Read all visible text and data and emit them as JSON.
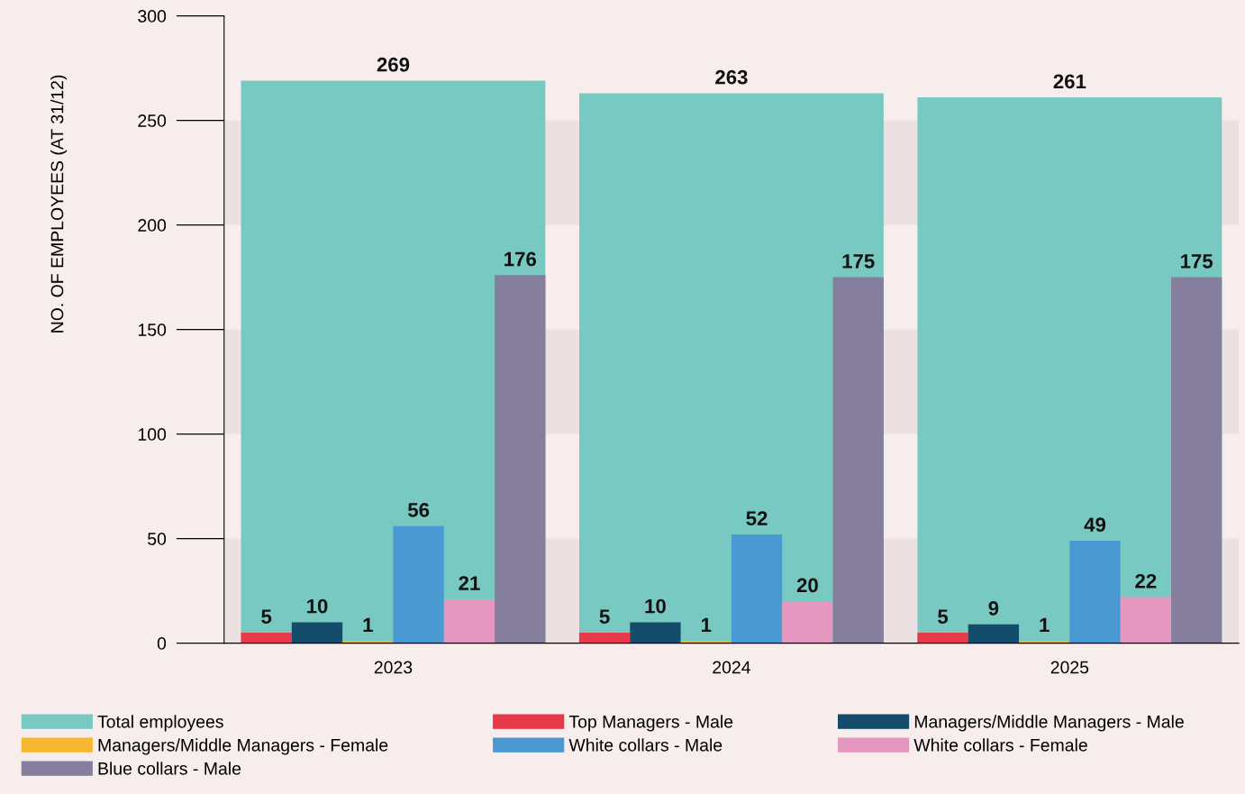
{
  "chart_data": {
    "type": "bar",
    "categories": [
      "2023",
      "2024",
      "2025"
    ],
    "ylabel": "NO. OF EMPLOYEES (AT 31/12)",
    "ylim": [
      0,
      300
    ],
    "yticks": [
      0,
      50,
      100,
      150,
      200,
      250,
      300
    ],
    "data_labels": true,
    "legend": "bottom",
    "grid": false,
    "bands": [
      {
        "axis": "y",
        "from": 0,
        "to": 50,
        "color": "#ede0e2"
      },
      {
        "axis": "y",
        "from": 100,
        "to": 150,
        "color": "#ede0e2"
      },
      {
        "axis": "y",
        "from": 200,
        "to": 250,
        "color": "#ede0e2"
      }
    ],
    "series": [
      {
        "name": "Total employees",
        "color": "#78c9c1",
        "values": [
          269,
          263,
          261
        ]
      },
      {
        "name": "Top Managers - Male",
        "color": "#e8394b",
        "values": [
          5,
          5,
          5
        ]
      },
      {
        "name": "Managers/Middle Managers - Male",
        "color": "#144c6b",
        "values": [
          10,
          10,
          9
        ]
      },
      {
        "name": "Managers/Middle Managers - Female",
        "color": "#f5b82e",
        "values": [
          1,
          1,
          1
        ]
      },
      {
        "name": "White collars - Male",
        "color": "#4a99d3",
        "values": [
          56,
          52,
          49
        ]
      },
      {
        "name": "White collars - Female",
        "color": "#e597c0",
        "values": [
          21,
          20,
          22
        ]
      },
      {
        "name": "Blue collars - Male",
        "color": "#857e9c",
        "values": [
          176,
          175,
          175
        ]
      }
    ]
  }
}
